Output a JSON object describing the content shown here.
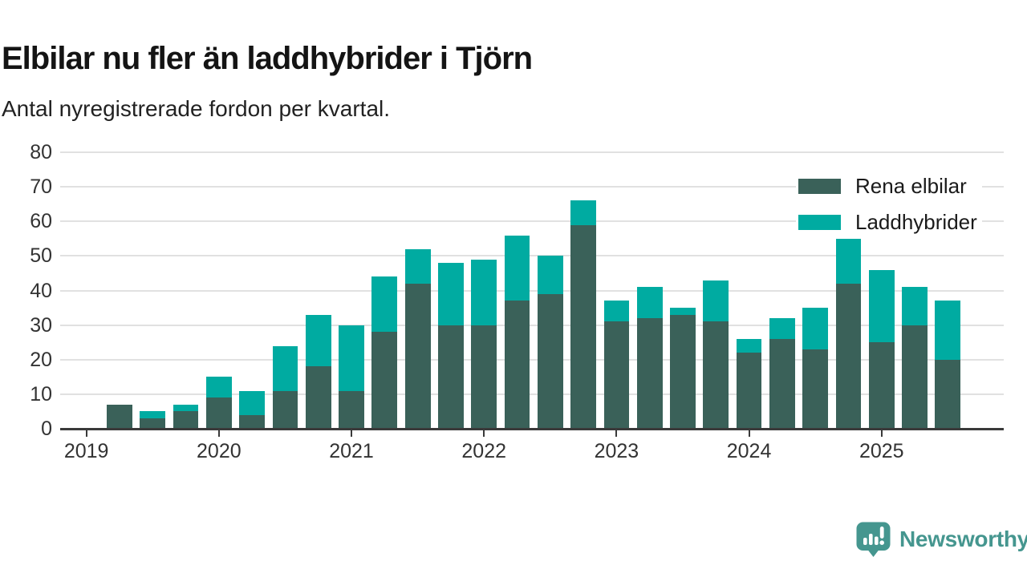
{
  "header": {
    "title": "Elbilar nu fler än laddhybrider i Tjörn",
    "subtitle": "Antal nyregistrerade fordon per kvartal."
  },
  "chart_data": {
    "type": "bar",
    "stacked": true,
    "title": "Elbilar nu fler än laddhybrider i Tjörn",
    "subtitle": "Antal nyregistrerade fordon per kvartal.",
    "categories": [
      "2019 Q1",
      "2019 Q2",
      "2019 Q3",
      "2019 Q4",
      "2020 Q1",
      "2020 Q2",
      "2020 Q3",
      "2020 Q4",
      "2021 Q1",
      "2021 Q2",
      "2021 Q3",
      "2021 Q4",
      "2022 Q1",
      "2022 Q2",
      "2022 Q3",
      "2022 Q4",
      "2023 Q1",
      "2023 Q2",
      "2023 Q3",
      "2023 Q4",
      "2024 Q1",
      "2024 Q2",
      "2024 Q3",
      "2024 Q4",
      "2025 Q1",
      "2025 Q2",
      "2025 Q3"
    ],
    "series": [
      {
        "name": "Rena elbilar",
        "color": "#3a6159",
        "values": [
          0,
          7,
          3,
          5,
          9,
          4,
          11,
          18,
          11,
          28,
          42,
          30,
          30,
          37,
          39,
          59,
          31,
          32,
          33,
          31,
          22,
          26,
          23,
          42,
          25,
          30,
          20
        ]
      },
      {
        "name": "Laddhybrider",
        "color": "#00aba1",
        "values": [
          0,
          0,
          2,
          2,
          6,
          7,
          13,
          15,
          19,
          16,
          10,
          18,
          19,
          19,
          11,
          7,
          6,
          9,
          2,
          12,
          4,
          6,
          12,
          13,
          21,
          11,
          17
        ]
      }
    ],
    "ylim": [
      0,
      80
    ],
    "yticks": [
      0,
      10,
      20,
      30,
      40,
      50,
      60,
      70,
      80
    ],
    "xticks": {
      "labels": [
        "2019",
        "2020",
        "2021",
        "2022",
        "2023",
        "2024",
        "2025"
      ],
      "at_category_indices": [
        0,
        4,
        8,
        12,
        16,
        20,
        24
      ]
    },
    "grid": "horizontal",
    "legend_position": "top-right"
  },
  "legend": {
    "items": [
      {
        "label": "Rena elbilar",
        "color": "#3a6159"
      },
      {
        "label": "Laddhybrider",
        "color": "#00aba1"
      }
    ]
  },
  "branding": {
    "logo_text": "Newsworthy",
    "logo_color": "#45968f",
    "logo_icon": "bar-chart-speech-bubble"
  }
}
